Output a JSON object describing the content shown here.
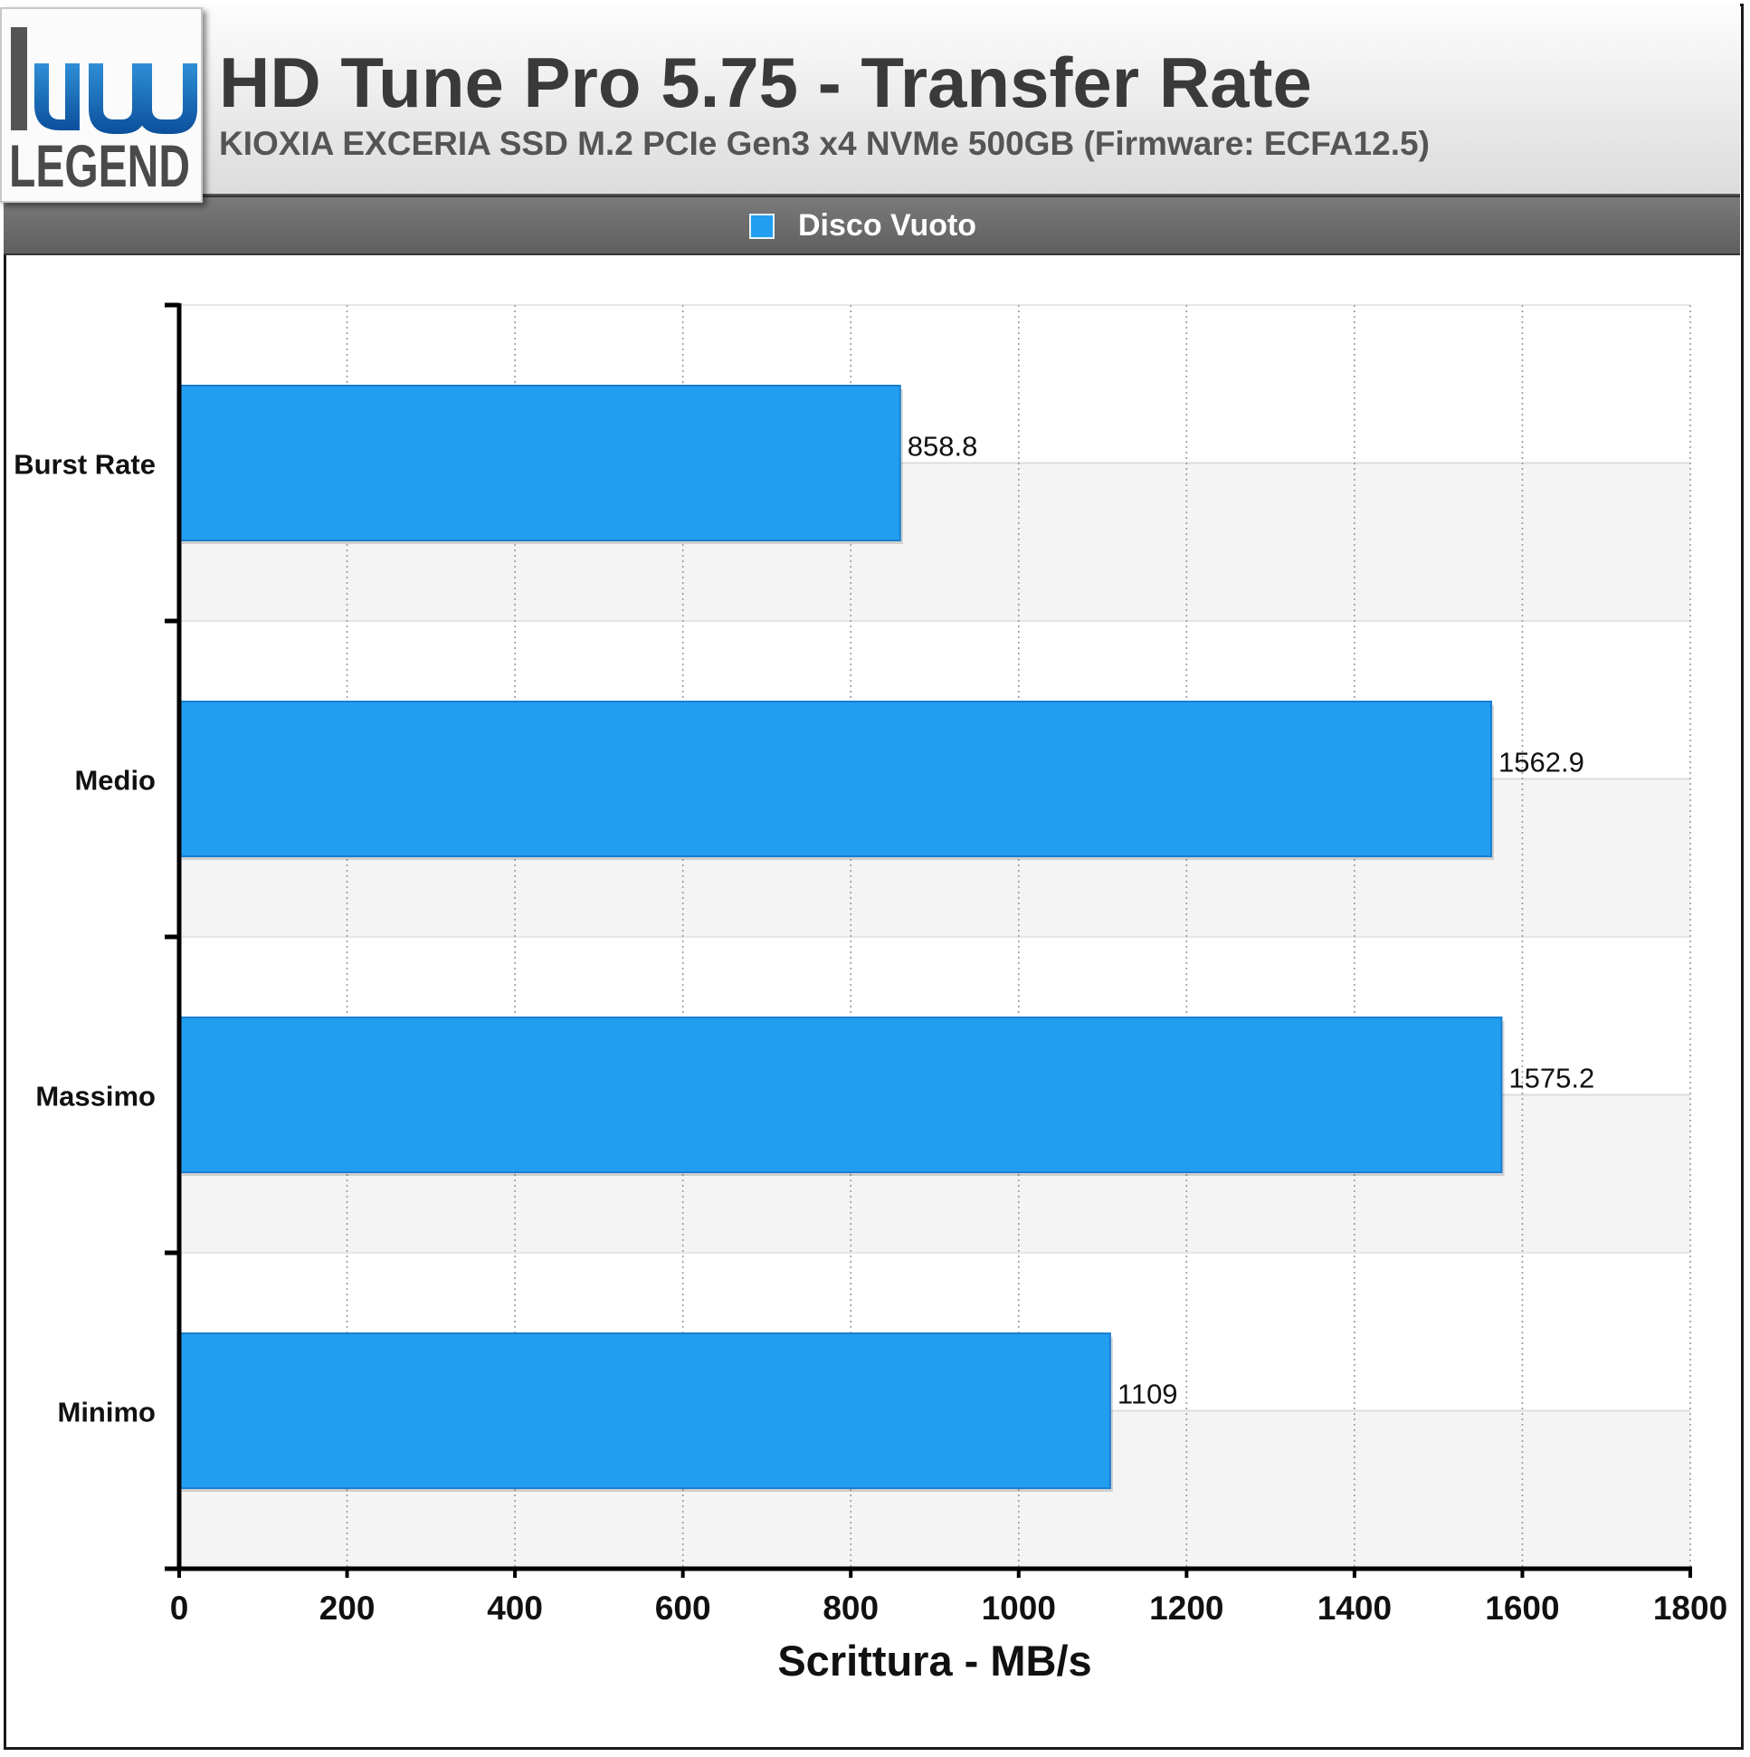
{
  "header": {
    "logo_text": "LEGEND",
    "title": "HD Tune Pro 5.75 - Transfer Rate",
    "subtitle": "KIOXIA EXCERIA SSD M.2 PCIe Gen3 x4 NVMe 500GB (Firmware: ECFA12.5)"
  },
  "colors": {
    "bar": "#229ef0",
    "bar_border": "#1a7fd0",
    "alt_band": "#f4f4f4"
  },
  "chart_data": {
    "type": "bar",
    "orientation": "horizontal",
    "title": "HD Tune Pro 5.75 - Transfer Rate",
    "subtitle": "KIOXIA EXCERIA SSD M.2 PCIe Gen3 x4 NVMe 500GB (Firmware: ECFA12.5)",
    "categories": [
      "Burst Rate",
      "Medio",
      "Massimo",
      "Minimo"
    ],
    "series": [
      {
        "name": "Disco Vuoto",
        "values": [
          858.8,
          1562.9,
          1575.2,
          1109
        ]
      }
    ],
    "value_labels": [
      "858.8",
      "1562.9",
      "1575.2",
      "1109"
    ],
    "xlabel": "Scrittura - MB/s",
    "ylabel": "",
    "xlim": [
      0,
      1800
    ],
    "xticks": [
      "0",
      "200",
      "400",
      "600",
      "800",
      "1000",
      "1200",
      "1400",
      "1600",
      "1800"
    ],
    "grid": "vertical dotted",
    "legend": "top-center"
  }
}
